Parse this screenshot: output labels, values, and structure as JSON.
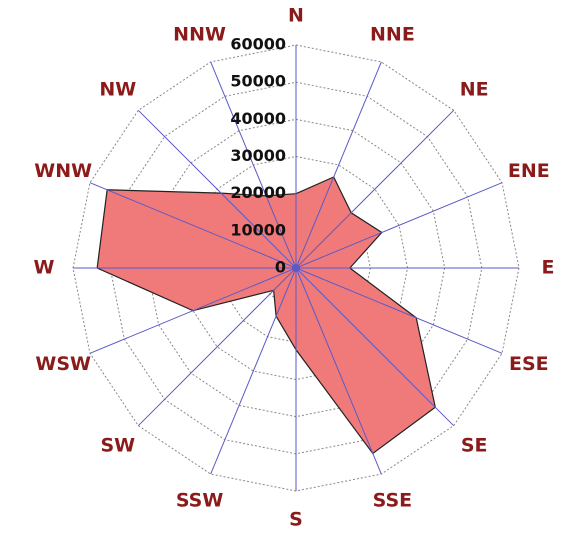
{
  "chart_data": {
    "type": "radar",
    "categories": [
      "N",
      "NNE",
      "NE",
      "ENE",
      "E",
      "ESE",
      "SE",
      "SSE",
      "S",
      "SSW",
      "SW",
      "WSW",
      "W",
      "WNW",
      "NW",
      "NNW"
    ],
    "values": [
      20000,
      26500,
      21000,
      25000,
      14500,
      35000,
      53000,
      54000,
      22000,
      14000,
      8500,
      30000,
      53500,
      55000,
      28500,
      21000
    ],
    "color": "#f07a7a",
    "rlim": [
      0,
      60000
    ],
    "rticks": [
      0,
      10000,
      20000,
      30000,
      40000,
      50000,
      60000
    ],
    "grid": true
  }
}
